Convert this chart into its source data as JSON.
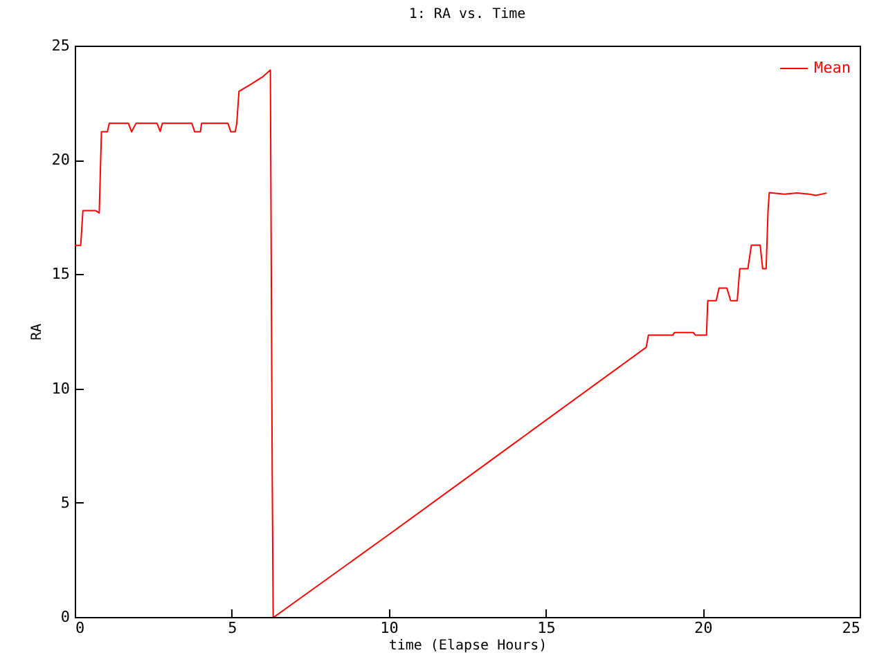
{
  "chart_data": {
    "type": "line",
    "title": "1: RA vs. Time",
    "xlabel": "time (Elapse Hours)",
    "ylabel": "RA",
    "xlim": [
      0,
      25
    ],
    "ylim": [
      0,
      25
    ],
    "xticks": [
      0,
      5,
      10,
      15,
      20,
      25
    ],
    "yticks": [
      0,
      5,
      10,
      15,
      20,
      25
    ],
    "grid": false,
    "legend": "top right",
    "marker": "none",
    "line_style": "solid",
    "series": [
      {
        "name": "Mean",
        "color": "#ff0000",
        "x": [
          0,
          0.19,
          0.26,
          0.67,
          0.78,
          0.85,
          1.04,
          1.1,
          1.71,
          1.81,
          1.95,
          2.62,
          2.72,
          2.79,
          3.73,
          3.82,
          4.0,
          4.04,
          4.88,
          4.97,
          5.11,
          5.16,
          5.23,
          5.6,
          6.0,
          6.23,
          6.25,
          6.29,
          6.32,
          6.35,
          10,
          14,
          18.2,
          18.27,
          19.05,
          19.1,
          19.7,
          19.77,
          20.12,
          20.16,
          20.43,
          20.52,
          20.77,
          20.89,
          21.1,
          21.18,
          21.44,
          21.55,
          21.83,
          21.91,
          22.02,
          22.08,
          22.12,
          22.6,
          23.0,
          23.4,
          23.6,
          23.95
        ],
        "values": [
          16.26,
          16.26,
          17.78,
          17.78,
          17.68,
          21.23,
          21.23,
          21.6,
          21.6,
          21.23,
          21.6,
          21.6,
          21.25,
          21.6,
          21.6,
          21.23,
          21.23,
          21.6,
          21.6,
          21.23,
          21.23,
          21.6,
          23.0,
          23.3,
          23.65,
          23.93,
          18.02,
          6.01,
          0,
          0,
          3.6,
          7.6,
          11.8,
          12.33,
          12.33,
          12.45,
          12.45,
          12.33,
          12.33,
          13.84,
          13.84,
          14.39,
          14.39,
          13.84,
          13.84,
          15.24,
          15.24,
          16.27,
          16.27,
          15.24,
          15.24,
          17.76,
          18.57,
          18.5,
          18.55,
          18.5,
          18.45,
          18.55
        ]
      }
    ]
  }
}
